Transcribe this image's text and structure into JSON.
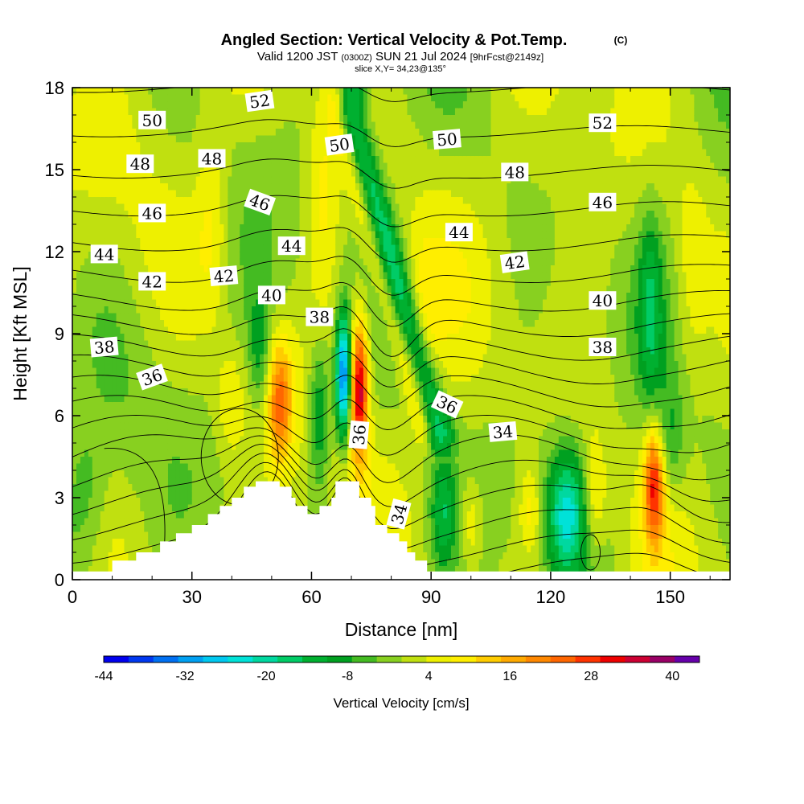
{
  "title": "Angled Section: Vertical Velocity & Pot.Temp.",
  "title_units": "(C)",
  "subtitle": {
    "valid_prefix": "Valid 1200 JST",
    "utc": "(0300Z)",
    "date": "SUN 21 Jul 2024",
    "forecast": "[9hrFcst@2149z]"
  },
  "slice_text": "slice X,Y= 34,23@135°",
  "chart_data": {
    "type": "heatmap",
    "title": "Angled Section: Vertical Velocity & Pot.Temp.",
    "xlabel": "Distance [nm]",
    "ylabel": "Height [Kft MSL]",
    "xlim": [
      0,
      165
    ],
    "ylim": [
      0,
      18
    ],
    "x_ticks": [
      0,
      30,
      60,
      90,
      120,
      150
    ],
    "y_ticks": [
      0,
      3,
      6,
      9,
      12,
      15,
      18
    ],
    "colorbar": {
      "label": "Vertical Velocity [cm/s]",
      "range": [
        -44,
        44
      ],
      "step": 4,
      "tick_values": [
        -44,
        -32,
        -20,
        -8,
        4,
        16,
        28,
        40
      ],
      "colors": [
        "#0000ee",
        "#0038f0",
        "#0070f2",
        "#00a0f2",
        "#00c8f0",
        "#00e2d8",
        "#00d8a0",
        "#00cc66",
        "#00b030",
        "#00a020",
        "#44bb22",
        "#88d020",
        "#c0e010",
        "#eef000",
        "#ffee00",
        "#ffcc00",
        "#ffaa00",
        "#ff8800",
        "#ff6600",
        "#ff3300",
        "#ee0000",
        "#cc0033",
        "#990066",
        "#6600aa"
      ]
    },
    "terrain_kft": [
      [
        0,
        0.3
      ],
      [
        10,
        0.3
      ],
      [
        10,
        0.7
      ],
      [
        16,
        0.7
      ],
      [
        16,
        1.0
      ],
      [
        22,
        1.0
      ],
      [
        22,
        1.4
      ],
      [
        26,
        1.4
      ],
      [
        26,
        1.7
      ],
      [
        30,
        1.7
      ],
      [
        30,
        2.0
      ],
      [
        34,
        2.0
      ],
      [
        34,
        2.4
      ],
      [
        37,
        2.4
      ],
      [
        37,
        2.7
      ],
      [
        40,
        2.7
      ],
      [
        40,
        3.0
      ],
      [
        43,
        3.0
      ],
      [
        43,
        3.4
      ],
      [
        46,
        3.4
      ],
      [
        46,
        3.6
      ],
      [
        52,
        3.6
      ],
      [
        52,
        3.4
      ],
      [
        55,
        3.4
      ],
      [
        55,
        3.0
      ],
      [
        56,
        3.0
      ],
      [
        56,
        2.7
      ],
      [
        59,
        2.7
      ],
      [
        59,
        2.4
      ],
      [
        62,
        2.4
      ],
      [
        62,
        2.7
      ],
      [
        65,
        2.7
      ],
      [
        65,
        3.0
      ],
      [
        66,
        3.0
      ],
      [
        66,
        3.6
      ],
      [
        72,
        3.6
      ],
      [
        72,
        3.0
      ],
      [
        75,
        3.0
      ],
      [
        75,
        2.7
      ],
      [
        76,
        2.7
      ],
      [
        76,
        2.0
      ],
      [
        79,
        2.0
      ],
      [
        79,
        1.7
      ],
      [
        82,
        1.7
      ],
      [
        82,
        1.4
      ],
      [
        84,
        1.4
      ],
      [
        84,
        1.0
      ],
      [
        86,
        1.0
      ],
      [
        86,
        0.7
      ],
      [
        89,
        0.7
      ],
      [
        89,
        0.3
      ],
      [
        165,
        0.3
      ]
    ],
    "updrafts": [
      {
        "x": 72,
        "y": 7.0,
        "sx": 1.6,
        "sy": 1.8,
        "w": 38
      },
      {
        "x": 52,
        "y": 6.5,
        "sx": 2.2,
        "sy": 1.6,
        "w": 24
      },
      {
        "x": 146,
        "y": 3.5,
        "sx": 1.8,
        "sy": 1.5,
        "w": 30
      },
      {
        "x": 131,
        "y": 3.0,
        "sx": 2.0,
        "sy": 1.5,
        "w": 10
      },
      {
        "x": 63,
        "y": 14.0,
        "sx": 3.0,
        "sy": 3.2,
        "w": 9
      },
      {
        "x": 100,
        "y": 2.0,
        "sx": 2.0,
        "sy": 1.2,
        "w": 9
      },
      {
        "x": 115,
        "y": 2.5,
        "sx": 2.0,
        "sy": 1.2,
        "w": 10
      },
      {
        "x": 35,
        "y": 13.0,
        "sx": 3.0,
        "sy": 2.5,
        "w": 8
      },
      {
        "x": 155,
        "y": 10.5,
        "sx": 3.0,
        "sy": 3.0,
        "w": 6
      },
      {
        "x": 40,
        "y": 6.5,
        "sx": 3.0,
        "sy": 1.5,
        "w": 8
      },
      {
        "x": 88,
        "y": 9.5,
        "sx": 3.0,
        "sy": 2.0,
        "w": 7
      }
    ],
    "downdrafts": [
      {
        "x": 68,
        "y": 7.4,
        "sx": 1.4,
        "sy": 1.6,
        "w": -40
      },
      {
        "x": 62,
        "y": 6.0,
        "sx": 2.0,
        "sy": 2.0,
        "w": -16
      },
      {
        "x": 124,
        "y": 2.5,
        "sx": 3.5,
        "sy": 1.6,
        "w": -24
      },
      {
        "x": 93,
        "y": 2.5,
        "sx": 2.2,
        "sy": 1.5,
        "w": -14
      },
      {
        "x": 145,
        "y": 10.0,
        "sx": 2.0,
        "sy": 2.5,
        "w": -12
      },
      {
        "x": 3,
        "y": 3.0,
        "sx": 4.0,
        "sy": 2.0,
        "w": -8
      },
      {
        "x": 47,
        "y": 8.5,
        "sx": 2.0,
        "sy": 1.5,
        "w": -10
      },
      {
        "x": 150,
        "y": 5.0,
        "sx": 2.5,
        "sy": 1.5,
        "w": -8
      }
    ],
    "tilted_downdraft": {
      "x0": 70,
      "y0": 17.0,
      "x1": 92,
      "y1": 5.5,
      "width": 2.6,
      "w": -18
    },
    "theta_contours_c": [
      33,
      34,
      35,
      36,
      37,
      38,
      39,
      40,
      41,
      42,
      43,
      44,
      45,
      46,
      47,
      48,
      49,
      50,
      51,
      52,
      53,
      54
    ],
    "contour_labels": [
      {
        "text": "52",
        "x": 47,
        "y": 17.5,
        "rot": -8
      },
      {
        "text": "50",
        "x": 20,
        "y": 16.8,
        "rot": 0
      },
      {
        "text": "52",
        "x": 133,
        "y": 16.7,
        "rot": 0
      },
      {
        "text": "50",
        "x": 67,
        "y": 15.9,
        "rot": -8
      },
      {
        "text": "50",
        "x": 94,
        "y": 16.1,
        "rot": -5
      },
      {
        "text": "48",
        "x": 17,
        "y": 15.2,
        "rot": 0
      },
      {
        "text": "48",
        "x": 35,
        "y": 15.4,
        "rot": 0
      },
      {
        "text": "48",
        "x": 111,
        "y": 14.9,
        "rot": 0
      },
      {
        "text": "46",
        "x": 47,
        "y": 13.8,
        "rot": 20
      },
      {
        "text": "46",
        "x": 133,
        "y": 13.8,
        "rot": 0
      },
      {
        "text": "46",
        "x": 20,
        "y": 13.4,
        "rot": 0
      },
      {
        "text": "44",
        "x": 8,
        "y": 11.9,
        "rot": 0
      },
      {
        "text": "44",
        "x": 55,
        "y": 12.2,
        "rot": 0
      },
      {
        "text": "44",
        "x": 97,
        "y": 12.7,
        "rot": 0
      },
      {
        "text": "42",
        "x": 20,
        "y": 10.9,
        "rot": 0
      },
      {
        "text": "42",
        "x": 38,
        "y": 11.1,
        "rot": -5
      },
      {
        "text": "42",
        "x": 111,
        "y": 11.6,
        "rot": -8
      },
      {
        "text": "40",
        "x": 50,
        "y": 10.4,
        "rot": 0
      },
      {
        "text": "40",
        "x": 133,
        "y": 10.2,
        "rot": 0
      },
      {
        "text": "38",
        "x": 62,
        "y": 9.6,
        "rot": 0
      },
      {
        "text": "38",
        "x": 8,
        "y": 8.5,
        "rot": -5
      },
      {
        "text": "38",
        "x": 133,
        "y": 8.5,
        "rot": 0
      },
      {
        "text": "36",
        "x": 20,
        "y": 7.4,
        "rot": -20
      },
      {
        "text": "36",
        "x": 94,
        "y": 6.4,
        "rot": 25
      },
      {
        "text": "36",
        "x": 72,
        "y": 5.3,
        "rot": -85
      },
      {
        "text": "34",
        "x": 108,
        "y": 5.4,
        "rot": -5
      },
      {
        "text": "34",
        "x": 82,
        "y": 2.4,
        "rot": -75
      }
    ]
  }
}
